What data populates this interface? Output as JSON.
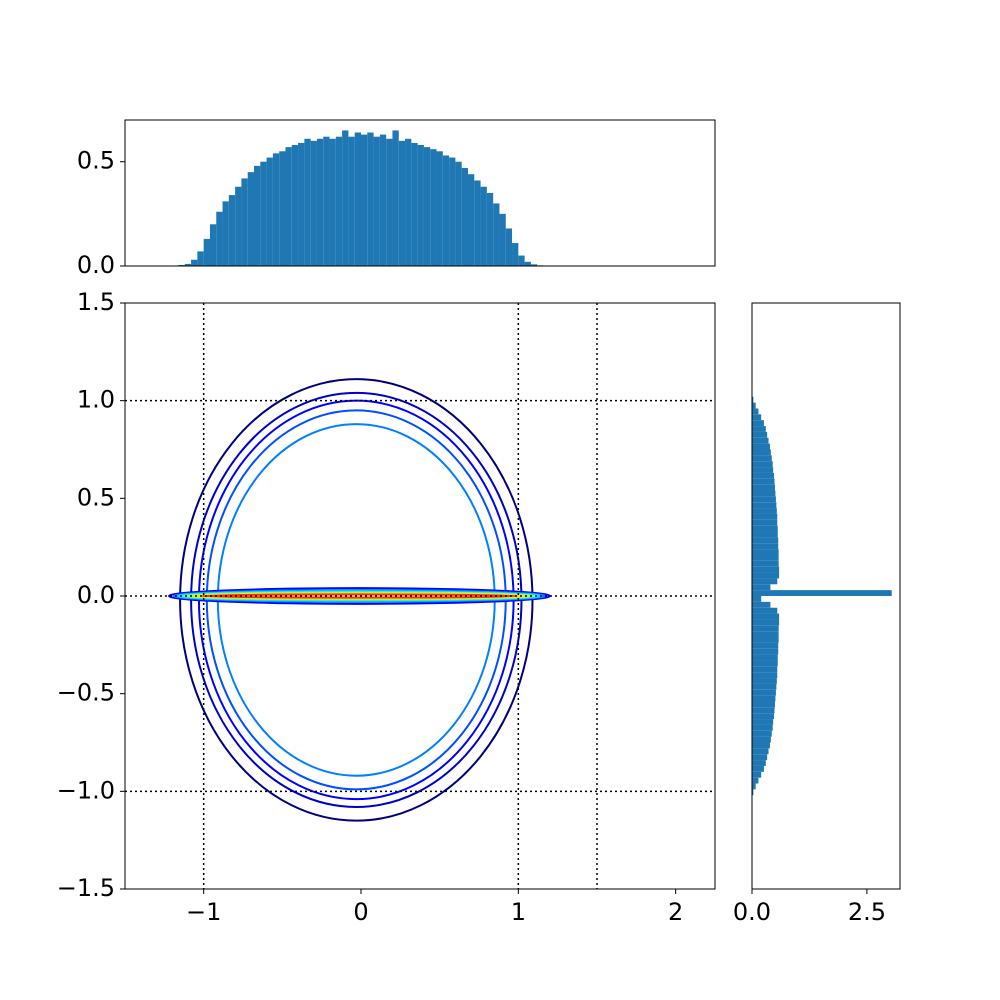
{
  "chart_data": [
    {
      "type": "histogram",
      "color": "#1f77b4",
      "xlim": [
        -1.5,
        2.25
      ],
      "ylim": [
        0,
        0.7
      ],
      "yticks": [
        {
          "value": 0,
          "label": "0.0"
        },
        0.5
      ],
      "bins": [
        -1.2,
        -1.16,
        -1.12,
        -1.08,
        -1.04,
        -1.0,
        -0.96,
        -0.92,
        -0.88,
        -0.84,
        -0.8,
        -0.76,
        -0.72,
        -0.68,
        -0.64,
        -0.6,
        -0.56,
        -0.52,
        -0.48,
        -0.44,
        -0.4,
        -0.36,
        -0.32,
        -0.28,
        -0.24,
        -0.2,
        -0.16,
        -0.12,
        -0.08,
        -0.04,
        0,
        0.04,
        0.08,
        0.12,
        0.16,
        0.2,
        0.24,
        0.28,
        0.32,
        0.36,
        0.4,
        0.44,
        0.48,
        0.52,
        0.56,
        0.6,
        0.64,
        0.68,
        0.72,
        0.76,
        0.8,
        0.84,
        0.88,
        0.92,
        0.96,
        1.0,
        1.04,
        1.08,
        1.12,
        1.16,
        1.2
      ],
      "values": [
        0.002,
        0.005,
        0.01,
        0.03,
        0.07,
        0.13,
        0.2,
        0.26,
        0.31,
        0.34,
        0.38,
        0.42,
        0.45,
        0.48,
        0.5,
        0.52,
        0.54,
        0.55,
        0.57,
        0.58,
        0.59,
        0.61,
        0.6,
        0.61,
        0.62,
        0.61,
        0.62,
        0.65,
        0.62,
        0.64,
        0.63,
        0.64,
        0.62,
        0.63,
        0.61,
        0.65,
        0.6,
        0.61,
        0.59,
        0.58,
        0.57,
        0.56,
        0.55,
        0.53,
        0.52,
        0.5,
        0.47,
        0.44,
        0.41,
        0.38,
        0.35,
        0.3,
        0.25,
        0.18,
        0.11,
        0.05,
        0.02,
        0.008,
        0.003,
        0.001
      ]
    },
    {
      "type": "contour",
      "xlim": [
        -1.5,
        2.25
      ],
      "ylim": [
        -1.5,
        1.5
      ],
      "xticks": [
        {
          "value": -1,
          "label": "−1"
        },
        0,
        1,
        2
      ],
      "yticks": [
        {
          "value": -1.5,
          "label": "−1.5"
        },
        {
          "value": -1,
          "label": "−1.0"
        },
        {
          "value": -0.5,
          "label": "−0.5"
        },
        {
          "value": 0,
          "label": "0.0"
        },
        0.5,
        {
          "value": 1,
          "label": "1.0"
        },
        1.5
      ],
      "reference_lines": {
        "x": [
          -1,
          1,
          1.5
        ],
        "y": [
          -1,
          0,
          1
        ]
      },
      "contours": [
        {
          "cx": -0.03,
          "cy": -0.02,
          "rx": 1.12,
          "ry": 1.13,
          "color": "#00007f"
        },
        {
          "cx": -0.03,
          "cy": -0.02,
          "rx": 1.05,
          "ry": 1.06,
          "color": "#0000c8"
        },
        {
          "cx": -0.03,
          "cy": -0.02,
          "rx": 1.0,
          "ry": 1.02,
          "color": "#0000ff"
        },
        {
          "cx": -0.03,
          "cy": -0.02,
          "rx": 0.95,
          "ry": 0.97,
          "color": "#0050ff"
        },
        {
          "cx": -0.03,
          "cy": -0.02,
          "rx": 0.88,
          "ry": 0.9,
          "color": "#0080ff"
        },
        {
          "cx": -0.01,
          "cy": 0.0,
          "rx": 1.21,
          "ry": 0.04,
          "color": "#0000ff"
        },
        {
          "cx": -0.01,
          "cy": 0.0,
          "rx": 1.18,
          "ry": 0.03,
          "color": "#0080ff"
        },
        {
          "cx": -0.01,
          "cy": 0.0,
          "rx": 1.15,
          "ry": 0.024,
          "color": "#00e0ff"
        },
        {
          "cx": -0.01,
          "cy": 0.0,
          "rx": 1.12,
          "ry": 0.018,
          "color": "#7dff7a"
        },
        {
          "cx": -0.01,
          "cy": 0.0,
          "rx": 1.08,
          "ry": 0.013,
          "color": "#ffe600"
        },
        {
          "cx": -0.01,
          "cy": 0.0,
          "rx": 1.0,
          "ry": 0.008,
          "color": "#ff3000"
        }
      ]
    },
    {
      "type": "histogram",
      "orientation": "horizontal",
      "color": "#1f77b4",
      "xlim": [
        0,
        3.22
      ],
      "ylim": [
        -1.5,
        1.5
      ],
      "xticks": [
        {
          "value": 0,
          "label": "0.0"
        },
        2.5
      ],
      "bins": [
        -1.05,
        -1.02,
        -0.99,
        -0.96,
        -0.93,
        -0.9,
        -0.87,
        -0.84,
        -0.81,
        -0.78,
        -0.75,
        -0.72,
        -0.69,
        -0.66,
        -0.63,
        -0.6,
        -0.57,
        -0.54,
        -0.51,
        -0.48,
        -0.45,
        -0.42,
        -0.39,
        -0.36,
        -0.33,
        -0.3,
        -0.27,
        -0.24,
        -0.21,
        -0.18,
        -0.15,
        -0.12,
        -0.09,
        -0.06,
        -0.03,
        0,
        0.03,
        0.06,
        0.09,
        0.12,
        0.15,
        0.18,
        0.21,
        0.24,
        0.27,
        0.3,
        0.33,
        0.36,
        0.39,
        0.42,
        0.45,
        0.48,
        0.51,
        0.54,
        0.57,
        0.6,
        0.63,
        0.66,
        0.69,
        0.72,
        0.75,
        0.78,
        0.81,
        0.84,
        0.87,
        0.9,
        0.93,
        0.96,
        0.99,
        1.02,
        1.05
      ],
      "values": [
        0.01,
        0.03,
        0.08,
        0.14,
        0.2,
        0.26,
        0.3,
        0.33,
        0.36,
        0.39,
        0.41,
        0.43,
        0.45,
        0.46,
        0.48,
        0.49,
        0.5,
        0.51,
        0.52,
        0.53,
        0.54,
        0.55,
        0.55,
        0.56,
        0.56,
        0.57,
        0.57,
        0.58,
        0.58,
        0.58,
        0.59,
        0.59,
        0.55,
        0.4,
        0.2,
        3.04,
        0.4,
        0.55,
        0.59,
        0.59,
        0.58,
        0.58,
        0.58,
        0.57,
        0.57,
        0.56,
        0.56,
        0.55,
        0.55,
        0.54,
        0.53,
        0.52,
        0.51,
        0.5,
        0.49,
        0.48,
        0.46,
        0.45,
        0.43,
        0.41,
        0.39,
        0.36,
        0.33,
        0.3,
        0.26,
        0.2,
        0.14,
        0.08,
        0.03,
        0.01
      ]
    }
  ]
}
